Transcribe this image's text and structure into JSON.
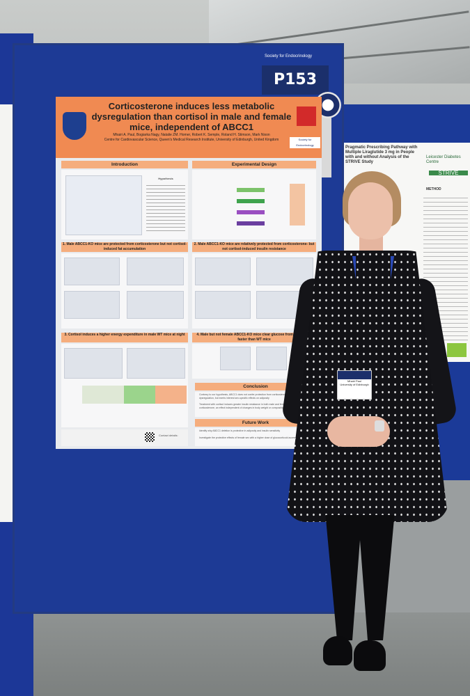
{
  "scene": {
    "board_number": "P153",
    "board_sponsor": "Society for Endocrinology"
  },
  "poster": {
    "title": "Corticosterone induces less metabolic dysregulation than cortisol in male and female mice, independent of ABCC1",
    "authors": "Mhairi A. Paul, Bogiarka Nagy, Natalie ZM. Homer, Robert K. Semple, Roland H. Stimson, Mark Nixon",
    "affiliation": "Centre for Cardiovascular Science, Queen's Medical Research Institute, University of Edinburgh, United Kingdom",
    "logo_right": "Society for Endocrinology",
    "sections": {
      "introduction": "Introduction",
      "experimental_design": "Experimental Design",
      "result1": "1. Male ABCC1-KO mice are protected from corticosterone but not cortisol-induced fat accumulation",
      "result2": "2. Male ABCC1-KO mice are relatively protected from corticosterone- but not cortisol-induced insulin resistance",
      "result3": "3. Cortisol induces a higher energy expenditure in male WT mice at night",
      "result4": "4. Male but not female ABCC1-KO mice clear glucose from circulation faster than WT mice",
      "conclusion": "Conclusion",
      "future_work": "Future Work"
    },
    "intro_box": "Hypothesis",
    "conclusion_items": [
      "Contrary to our hypothesis, ABCC1 does not confer protection from corticosteroid-induced metabolic dysregulation, but exerts interest sex-specific effects on adiposity",
      "Treatment with cortisol induces greater insulin resistance in both male and female mice than corticosterone, an effect independent of changes in body weight or composition"
    ],
    "future_items": [
      "Identify why ABCC1 deletion is protective in adiposity and insulin sensitivity",
      "Investigate the protective effects of female sex with a higher dose of glucocorticoid access"
    ],
    "contact": "Contact details:"
  },
  "right_poster": {
    "title": "Pragmatic Prescribing Pathway with Multiple Liraglutide 3 mg in People with and without Analysis of the STRIVE Study",
    "logo1": "Leicester Diabetes Centre",
    "logo2": "STRIVE",
    "method": "METHOD"
  },
  "badge": {
    "name": "Mhairi Paul",
    "org": "University of Edinburgh"
  }
}
